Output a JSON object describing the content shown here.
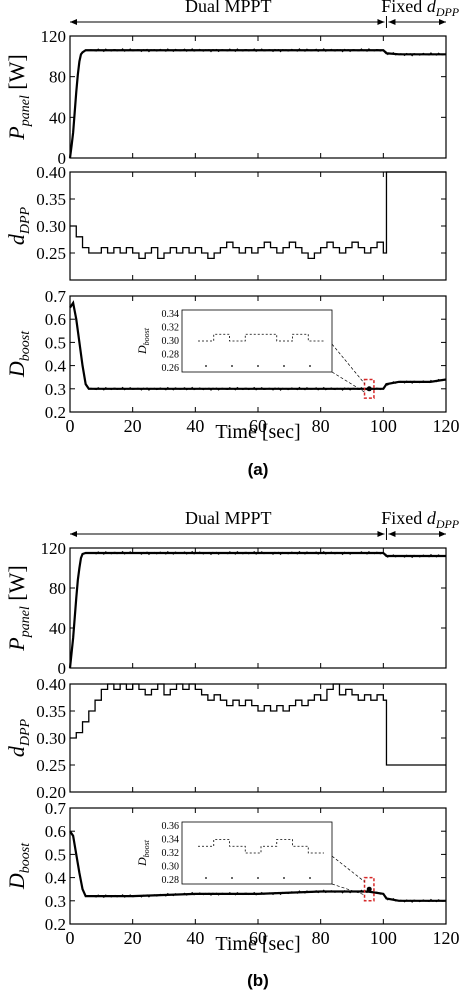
{
  "chart_data": [
    {
      "panel_label": "(a)",
      "top_annotation": {
        "left": "Dual MPPT",
        "right_prefix": "Fixed ",
        "right_var": "d",
        "right_sub": "DPP"
      },
      "xlabel": "Time [sec]",
      "xlim": [
        0,
        120
      ],
      "xticks": [
        0,
        20,
        40,
        60,
        80,
        100,
        120
      ],
      "subplots": [
        {
          "name": "P_panel",
          "type": "line",
          "ylabel": {
            "main": "P",
            "sub": "panel",
            "unit": " [W]"
          },
          "ylim": [
            0,
            120
          ],
          "yticks": [
            0,
            40,
            80,
            120
          ],
          "x": [
            0,
            0.5,
            1,
            1.5,
            2,
            2.5,
            3,
            3.5,
            4,
            5,
            6,
            10,
            20,
            40,
            60,
            80,
            95,
            100,
            101,
            105,
            110,
            115,
            120
          ],
          "y": [
            0,
            12,
            25,
            45,
            65,
            82,
            95,
            102,
            104,
            106,
            106,
            106,
            106,
            106,
            106,
            106,
            106,
            106,
            103,
            102,
            102,
            102,
            102
          ]
        },
        {
          "name": "d_DPP",
          "type": "step",
          "ylabel": {
            "main": "d",
            "sub": "DPP",
            "unit": ""
          },
          "ylim": [
            0.2,
            0.4
          ],
          "yticks": [
            0.25,
            0.3,
            0.35,
            0.4
          ],
          "x": [
            0,
            2,
            4,
            6,
            8,
            10,
            12,
            14,
            16,
            18,
            20,
            22,
            24,
            26,
            28,
            30,
            32,
            34,
            36,
            38,
            40,
            42,
            44,
            46,
            48,
            50,
            52,
            54,
            56,
            58,
            60,
            62,
            64,
            66,
            68,
            70,
            72,
            74,
            76,
            78,
            80,
            82,
            84,
            86,
            88,
            90,
            92,
            94,
            96,
            98,
            100,
            101,
            120
          ],
          "y": [
            0.3,
            0.28,
            0.26,
            0.25,
            0.25,
            0.26,
            0.25,
            0.26,
            0.25,
            0.26,
            0.25,
            0.24,
            0.25,
            0.26,
            0.24,
            0.25,
            0.26,
            0.25,
            0.26,
            0.25,
            0.26,
            0.25,
            0.24,
            0.25,
            0.26,
            0.27,
            0.26,
            0.25,
            0.26,
            0.25,
            0.26,
            0.27,
            0.26,
            0.25,
            0.26,
            0.27,
            0.26,
            0.25,
            0.24,
            0.25,
            0.26,
            0.27,
            0.26,
            0.25,
            0.26,
            0.27,
            0.26,
            0.25,
            0.26,
            0.27,
            0.25,
            0.4,
            0.4
          ]
        },
        {
          "name": "D_boost",
          "type": "line",
          "ylabel": {
            "main": "D",
            "sub": "boost",
            "unit": ""
          },
          "ylim": [
            0.2,
            0.7
          ],
          "yticks": [
            0.2,
            0.3,
            0.4,
            0.5,
            0.6,
            0.7
          ],
          "x": [
            0,
            1,
            2,
            3,
            4,
            5,
            6,
            10,
            20,
            40,
            60,
            80,
            95,
            100,
            101,
            105,
            110,
            115,
            120
          ],
          "y": [
            0.65,
            0.67,
            0.6,
            0.5,
            0.4,
            0.32,
            0.3,
            0.3,
            0.3,
            0.3,
            0.3,
            0.3,
            0.3,
            0.3,
            0.32,
            0.33,
            0.33,
            0.33,
            0.34
          ],
          "inset": {
            "ylabel": {
              "main": "D",
              "sub": "boost"
            },
            "ylim": [
              0.26,
              0.34
            ],
            "yticks": [
              0.26,
              0.28,
              0.3,
              0.32,
              0.34
            ],
            "highlight_x": [
              94,
              97
            ],
            "highlight_y": [
              0.26,
              0.34
            ],
            "trace_y": [
              0.3,
              0.31,
              0.3,
              0.31,
              0.31,
              0.3,
              0.31,
              0.3
            ]
          }
        }
      ]
    },
    {
      "panel_label": "(b)",
      "top_annotation": {
        "left": "Dual MPPT",
        "right_prefix": "Fixed ",
        "right_var": "d",
        "right_sub": "DPP"
      },
      "xlabel": "Time [sec]",
      "xlim": [
        0,
        120
      ],
      "xticks": [
        0,
        20,
        40,
        60,
        80,
        100,
        120
      ],
      "subplots": [
        {
          "name": "P_panel",
          "type": "line",
          "ylabel": {
            "main": "P",
            "sub": "panel",
            "unit": " [W]"
          },
          "ylim": [
            0,
            120
          ],
          "yticks": [
            0,
            40,
            80,
            120
          ],
          "x": [
            0,
            0.5,
            1,
            1.5,
            2,
            2.5,
            3,
            3.5,
            4,
            5,
            6,
            10,
            20,
            40,
            60,
            80,
            95,
            100,
            101,
            105,
            110,
            115,
            120
          ],
          "y": [
            0,
            15,
            30,
            50,
            70,
            88,
            100,
            110,
            114,
            115,
            115,
            115,
            115,
            115,
            115,
            115,
            115,
            115,
            112,
            112,
            112,
            112,
            112
          ]
        },
        {
          "name": "d_DPP",
          "type": "step",
          "ylabel": {
            "main": "d",
            "sub": "DPP",
            "unit": ""
          },
          "ylim": [
            0.2,
            0.4
          ],
          "yticks": [
            0.2,
            0.25,
            0.3,
            0.35,
            0.4
          ],
          "x": [
            0,
            2,
            4,
            6,
            8,
            10,
            12,
            14,
            16,
            18,
            20,
            22,
            24,
            26,
            28,
            30,
            32,
            34,
            36,
            38,
            40,
            42,
            44,
            46,
            48,
            50,
            52,
            54,
            56,
            58,
            60,
            62,
            64,
            66,
            68,
            70,
            72,
            74,
            76,
            78,
            80,
            82,
            84,
            86,
            88,
            90,
            92,
            94,
            96,
            98,
            100,
            101,
            120
          ],
          "y": [
            0.3,
            0.31,
            0.33,
            0.35,
            0.37,
            0.39,
            0.4,
            0.39,
            0.4,
            0.39,
            0.4,
            0.39,
            0.38,
            0.39,
            0.4,
            0.38,
            0.39,
            0.4,
            0.39,
            0.4,
            0.39,
            0.38,
            0.37,
            0.38,
            0.37,
            0.36,
            0.37,
            0.36,
            0.37,
            0.36,
            0.35,
            0.36,
            0.35,
            0.36,
            0.35,
            0.36,
            0.37,
            0.36,
            0.37,
            0.38,
            0.37,
            0.39,
            0.4,
            0.38,
            0.39,
            0.38,
            0.37,
            0.38,
            0.37,
            0.38,
            0.37,
            0.25,
            0.25
          ]
        },
        {
          "name": "D_boost",
          "type": "line",
          "ylabel": {
            "main": "D",
            "sub": "boost",
            "unit": ""
          },
          "ylim": [
            0.2,
            0.7
          ],
          "yticks": [
            0.2,
            0.3,
            0.4,
            0.5,
            0.6,
            0.7
          ],
          "x": [
            0,
            1,
            2,
            3,
            4,
            5,
            6,
            10,
            20,
            40,
            60,
            80,
            95,
            100,
            101,
            105,
            110,
            115,
            120
          ],
          "y": [
            0.6,
            0.58,
            0.5,
            0.42,
            0.35,
            0.32,
            0.32,
            0.32,
            0.32,
            0.33,
            0.33,
            0.34,
            0.34,
            0.33,
            0.31,
            0.3,
            0.3,
            0.3,
            0.3
          ],
          "inset": {
            "ylabel": {
              "main": "D",
              "sub": "boost"
            },
            "ylim": [
              0.28,
              0.36
            ],
            "yticks": [
              0.28,
              0.3,
              0.32,
              0.34,
              0.36
            ],
            "highlight_x": [
              94,
              97
            ],
            "highlight_y": [
              0.3,
              0.4
            ],
            "trace_y": [
              0.33,
              0.34,
              0.33,
              0.32,
              0.33,
              0.34,
              0.33,
              0.32
            ]
          }
        }
      ]
    }
  ]
}
